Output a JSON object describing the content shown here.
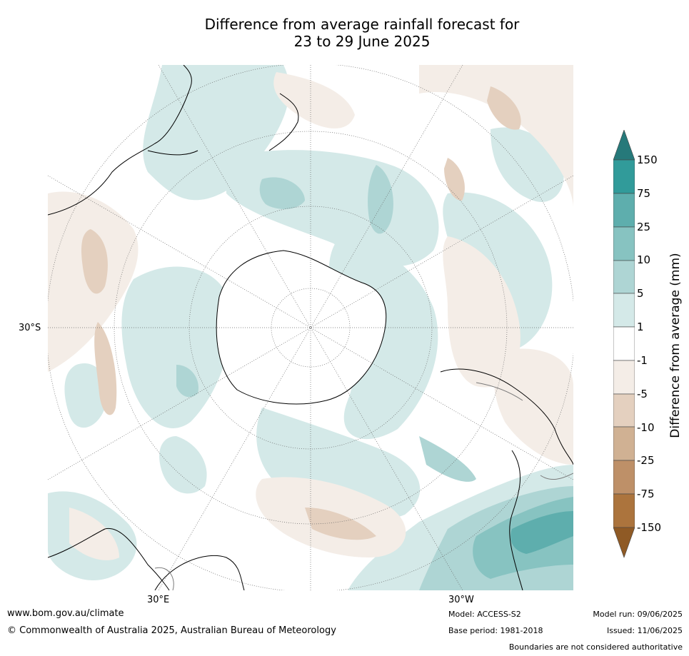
{
  "title": {
    "line1": "Difference from average rainfall forecast for",
    "line2": "23 to 29 June 2025"
  },
  "map": {
    "projection": "south-polar-stereographic",
    "lat_label": "30°S",
    "lon_labels": {
      "east": "30°E",
      "west": "30°W"
    }
  },
  "colorbar": {
    "title": "Difference from average (mm)",
    "ticks": [
      "150",
      "75",
      "25",
      "10",
      "5",
      "1",
      "-1",
      "-5",
      "-10",
      "-25",
      "-75",
      "-150"
    ],
    "colors": {
      "above_150": "#26797a",
      "75_150": "#319b9a",
      "25_75": "#5eaead",
      "10_25": "#87c3c1",
      "5_10": "#aed5d4",
      "1_5": "#d4e9e8",
      "-1_1": "#ffffff",
      "-5_-1": "#f4ede7",
      "-10_-5": "#e4d0bf",
      "-25_-10": "#d0b193",
      "-75_-25": "#be9068",
      "-150_-75": "#ac743d",
      "below_-150": "#8f5a25"
    }
  },
  "footer": {
    "url": "www.bom.gov.au/climate",
    "copyright": "© Commonwealth of Australia 2025, Australian Bureau of Meteorology",
    "model": "Model: ACCESS-S2",
    "base_period": "Base period: 1981-2018",
    "model_run": "Model run: 09/06/2025",
    "issued": "Issued: 11/06/2025",
    "disclaimer": "Boundaries are not considered authoritative"
  }
}
